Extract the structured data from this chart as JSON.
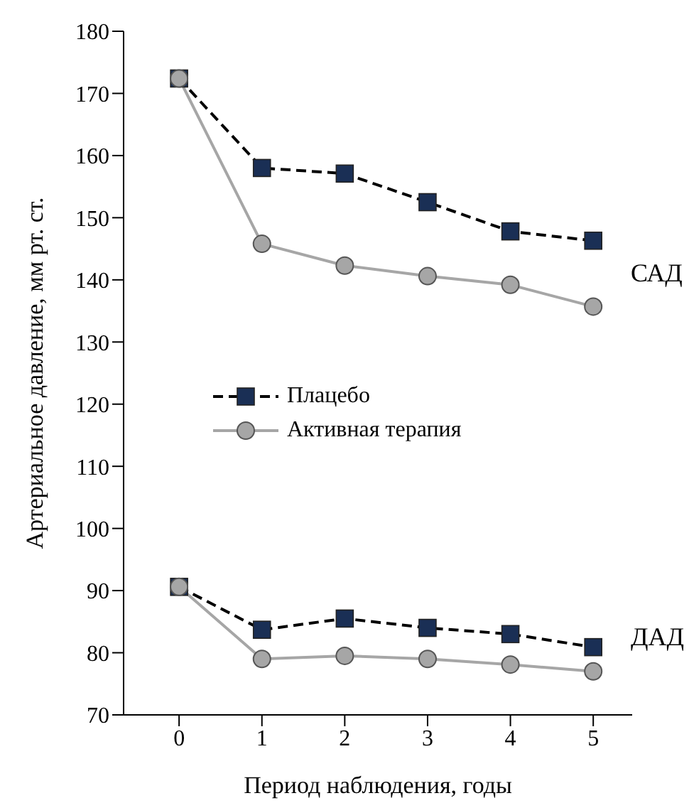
{
  "chart_data": {
    "type": "line",
    "xlabel": "Период наблюдения, годы",
    "ylabel": "Артериальное давление, мм рт. ст.",
    "x": [
      0,
      1,
      2,
      3,
      4,
      5
    ],
    "xlim": [
      -0.67,
      5.47
    ],
    "xticks": [
      0,
      1,
      2,
      3,
      4,
      5
    ],
    "ylim": [
      70,
      180
    ],
    "yticks": [
      70,
      80,
      90,
      100,
      110,
      120,
      130,
      140,
      150,
      160,
      170,
      180
    ],
    "legend": "left",
    "grid": false,
    "series": [
      {
        "name": "Плацебо",
        "color": "#1a2f55",
        "line_style": "dashed",
        "marker": "square",
        "values": [
          172.4,
          158,
          157.1,
          152.5,
          147.8,
          146.3
        ]
      },
      {
        "name": "Активная терапия",
        "color": "#a6a6a6",
        "line_style": "solid",
        "marker": "circle",
        "values": [
          172.4,
          145.8,
          142.3,
          140.6,
          139.2,
          135.7
        ]
      },
      {
        "color": "#1a2f55",
        "line_style": "dashed",
        "marker": "square",
        "values": [
          90.6,
          83.7,
          85.5,
          84,
          83,
          80.9
        ]
      },
      {
        "color": "#a6a6a6",
        "line_style": "solid",
        "marker": "circle",
        "values": [
          90.6,
          79,
          79.5,
          79,
          78.1,
          77
        ]
      }
    ],
    "annotations": [
      "САД",
      "ДАД"
    ]
  }
}
